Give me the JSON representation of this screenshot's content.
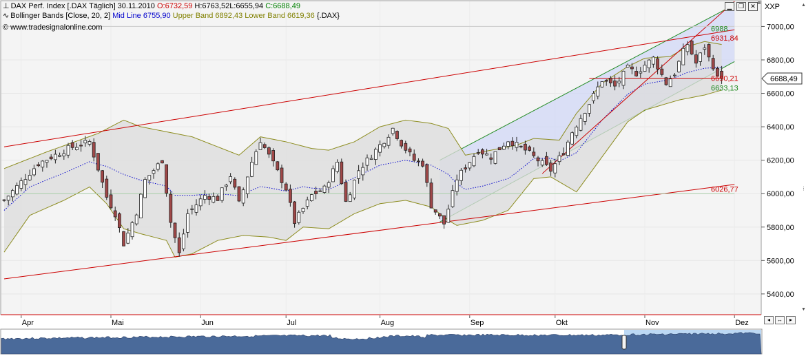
{
  "header": {
    "instrument": "DAX Perf. Index [.DAX  Täglich] 30.11.2010",
    "open": "O:6732,59",
    "high": "H:6763,52",
    "low": "L:6655,94",
    "close": "C:6688,49",
    "indicator_name": "Bollinger Bands [Close, 20, 2]",
    "mid_line": "Mid Line 6755,90",
    "upper_band": "Upper Band 6892,43",
    "lower_band": "Lower Band 6619,36",
    "indicator_symbol": "{.DAX}",
    "copyright": "© www.tradesignalonline.com"
  },
  "toolbar": {
    "axis_mode_label": "XXP"
  },
  "colors": {
    "band_fill": "#dcdcdc",
    "band_stroke": "#8c8c1e",
    "channel_red": "#cc0000",
    "channel_green": "#228b22",
    "mid_line": "#0000cc",
    "up_candle": "#ffffff",
    "down_candle": "#a04848",
    "overview_fill": "#4a6a9a",
    "overview_highlight": "#bcd8f4"
  },
  "chart_data": {
    "type": "candlestick",
    "x_labels": [
      "Apr",
      "Mai",
      "Jun",
      "Jul",
      "Aug",
      "Sep",
      "Okt",
      "Nov",
      "Dez"
    ],
    "x_label_index": [
      4,
      25,
      46,
      66,
      88,
      109,
      129,
      150,
      171
    ],
    "y_ticks": [
      5400,
      5600,
      5800,
      6000,
      6200,
      6400,
      6600,
      6800,
      7000
    ],
    "y_tick_labels": [
      "5400,00",
      "5600,00",
      "5800,00",
      "6000,00",
      "6200,00",
      "6400,00",
      "6600,00",
      "6800,00",
      "7000,00"
    ],
    "ylim": [
      5280,
      7150
    ],
    "bar_count": 176,
    "anchors": [
      [
        0,
        5960
      ],
      [
        8,
        6180
      ],
      [
        15,
        6270
      ],
      [
        20,
        6310
      ],
      [
        22,
        6150
      ],
      [
        24,
        5980
      ],
      [
        26,
        5880
      ],
      [
        28,
        5700
      ],
      [
        31,
        5890
      ],
      [
        33,
        6080
      ],
      [
        37,
        6200
      ],
      [
        39,
        5830
      ],
      [
        41,
        5640
      ],
      [
        43,
        5880
      ],
      [
        47,
        5990
      ],
      [
        50,
        5970
      ],
      [
        53,
        6110
      ],
      [
        55,
        5940
      ],
      [
        58,
        6190
      ],
      [
        60,
        6320
      ],
      [
        63,
        6180
      ],
      [
        66,
        6030
      ],
      [
        68,
        5830
      ],
      [
        72,
        5990
      ],
      [
        75,
        6030
      ],
      [
        78,
        6190
      ],
      [
        80,
        5950
      ],
      [
        83,
        6140
      ],
      [
        86,
        6230
      ],
      [
        89,
        6320
      ],
      [
        91,
        6390
      ],
      [
        93,
        6300
      ],
      [
        96,
        6200
      ],
      [
        98,
        6180
      ],
      [
        100,
        5930
      ],
      [
        103,
        5820
      ],
      [
        106,
        6090
      ],
      [
        108,
        6160
      ],
      [
        111,
        6260
      ],
      [
        114,
        6220
      ],
      [
        118,
        6320
      ],
      [
        122,
        6260
      ],
      [
        125,
        6200
      ],
      [
        128,
        6140
      ],
      [
        131,
        6250
      ],
      [
        133,
        6370
      ],
      [
        137,
        6540
      ],
      [
        140,
        6680
      ],
      [
        143,
        6640
      ],
      [
        146,
        6750
      ],
      [
        148,
        6720
      ],
      [
        150,
        6770
      ],
      [
        152,
        6810
      ],
      [
        155,
        6660
      ],
      [
        157,
        6720
      ],
      [
        159,
        6850
      ],
      [
        160,
        6895
      ],
      [
        162,
        6780
      ],
      [
        164,
        6880
      ],
      [
        165,
        6810
      ],
      [
        166,
        6765
      ],
      [
        167,
        6690
      ],
      [
        168,
        6688
      ]
    ],
    "upper_band": [
      [
        0,
        6150
      ],
      [
        10,
        6250
      ],
      [
        22,
        6360
      ],
      [
        28,
        6440
      ],
      [
        32,
        6400
      ],
      [
        40,
        6360
      ],
      [
        44,
        6340
      ],
      [
        50,
        6280
      ],
      [
        55,
        6230
      ],
      [
        60,
        6340
      ],
      [
        66,
        6310
      ],
      [
        72,
        6270
      ],
      [
        76,
        6260
      ],
      [
        82,
        6310
      ],
      [
        88,
        6400
      ],
      [
        94,
        6440
      ],
      [
        100,
        6420
      ],
      [
        104,
        6390
      ],
      [
        108,
        6230
      ],
      [
        114,
        6260
      ],
      [
        120,
        6290
      ],
      [
        124,
        6330
      ],
      [
        130,
        6320
      ],
      [
        134,
        6480
      ],
      [
        140,
        6660
      ],
      [
        146,
        6760
      ],
      [
        150,
        6810
      ],
      [
        156,
        6820
      ],
      [
        160,
        6880
      ],
      [
        164,
        6910
      ],
      [
        168,
        6892
      ]
    ],
    "lower_band": [
      [
        0,
        5650
      ],
      [
        6,
        5870
      ],
      [
        14,
        5960
      ],
      [
        20,
        6040
      ],
      [
        24,
        5940
      ],
      [
        28,
        5790
      ],
      [
        32,
        5760
      ],
      [
        38,
        5720
      ],
      [
        40,
        5620
      ],
      [
        44,
        5640
      ],
      [
        50,
        5720
      ],
      [
        56,
        5750
      ],
      [
        62,
        5740
      ],
      [
        66,
        5720
      ],
      [
        70,
        5800
      ],
      [
        76,
        5790
      ],
      [
        82,
        5880
      ],
      [
        88,
        5940
      ],
      [
        94,
        5960
      ],
      [
        100,
        5920
      ],
      [
        104,
        5840
      ],
      [
        106,
        5810
      ],
      [
        112,
        5840
      ],
      [
        118,
        5900
      ],
      [
        124,
        6090
      ],
      [
        128,
        6100
      ],
      [
        132,
        6040
      ],
      [
        134,
        6010
      ],
      [
        140,
        6220
      ],
      [
        146,
        6430
      ],
      [
        150,
        6500
      ],
      [
        154,
        6530
      ],
      [
        158,
        6560
      ],
      [
        164,
        6590
      ],
      [
        168,
        6619
      ]
    ],
    "trend_lines": [
      {
        "label": "",
        "color": "#cc0000",
        "x": [
          0,
          171
        ],
        "y": [
          6280,
          6980
        ]
      },
      {
        "label": "",
        "color": "#cc0000",
        "x": [
          0,
          171
        ],
        "y": [
          5490,
          6055
        ]
      },
      {
        "label": "",
        "color": "#cc0000",
        "x": [
          126,
          171
        ],
        "y": [
          6120,
          7150
        ]
      },
      {
        "label": "",
        "color": "#cc0000",
        "x": [
          137,
          168
        ],
        "y": [
          6690,
          6690
        ]
      },
      {
        "label": "",
        "color": "#cccccc",
        "x": [
          0,
          171
        ],
        "y": [
          7000,
          7000
        ]
      },
      {
        "label": "",
        "color": "#a8cfa8",
        "x": [
          0,
          171
        ],
        "y": [
          6000,
          6000
        ]
      }
    ],
    "channel": {
      "upper": [
        [
          102,
          6200
        ],
        [
          171,
          7130
        ]
      ],
      "lower": [
        [
          102,
          5830
        ],
        [
          171,
          6790
        ]
      ]
    },
    "price_labels": [
      {
        "value": 6988,
        "text": "6988",
        "color": "#228b22"
      },
      {
        "value": 6931.84,
        "text": "6931,84",
        "color": "#cc0000"
      },
      {
        "value": 6690.21,
        "text": "6690,21",
        "color": "#cc0000"
      },
      {
        "value": 6633.13,
        "text": "6633,13",
        "color": "#228b22"
      },
      {
        "value": 6026.77,
        "text": "6026,77",
        "color": "#cc0000"
      }
    ],
    "last_price": {
      "value": 6688.49,
      "text": "6688,49"
    }
  }
}
